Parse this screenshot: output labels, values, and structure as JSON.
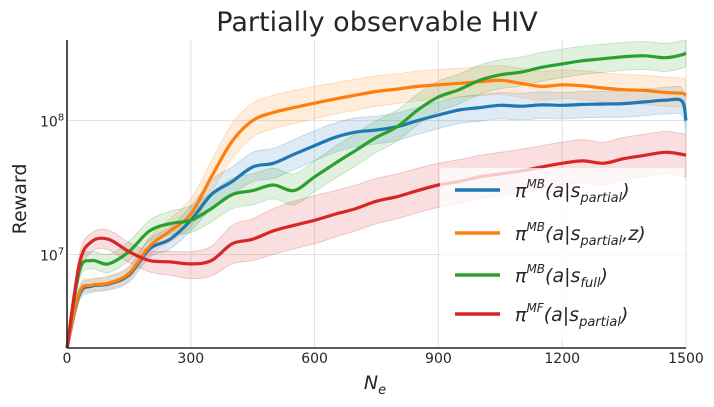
{
  "chart_data": {
    "type": "line",
    "title": "Partially observable HIV",
    "xlabel": "N_e",
    "xlabel_base": "N",
    "xlabel_sub": "e",
    "ylabel": "Reward",
    "yscale": "log",
    "xlim": [
      0,
      1500
    ],
    "ylim": [
      2000000,
      400000000
    ],
    "xticks": [
      0,
      300,
      600,
      900,
      1200,
      1500
    ],
    "xtick_labels": [
      "0",
      "300",
      "600",
      "900",
      "1200",
      "1500"
    ],
    "yticks": [
      {
        "value": 10000000,
        "base": "10",
        "exp": "7"
      },
      {
        "value": 100000000,
        "base": "10",
        "exp": "8"
      }
    ],
    "grid": true,
    "legend_position": "lower-right",
    "x": [
      0,
      30,
      60,
      100,
      150,
      200,
      250,
      300,
      350,
      400,
      450,
      500,
      550,
      600,
      650,
      700,
      750,
      800,
      850,
      900,
      950,
      1000,
      1050,
      1100,
      1150,
      1200,
      1250,
      1300,
      1350,
      1400,
      1450,
      1490,
      1500
    ],
    "series": [
      {
        "name": "π^MB(a|s_partial)",
        "label_super": "MB",
        "label_arg": "a|s",
        "label_sub": "partial",
        "label_extra": "",
        "color": "#1f77b4",
        "values": [
          1700000,
          5000000,
          5800000,
          6000000,
          7000000,
          11000000,
          13000000,
          18000000,
          28000000,
          35000000,
          45000000,
          48000000,
          56000000,
          65000000,
          75000000,
          82000000,
          85000000,
          90000000,
          100000000,
          110000000,
          120000000,
          125000000,
          130000000,
          128000000,
          131000000,
          130000000,
          132000000,
          133000000,
          134000000,
          138000000,
          142000000,
          140000000,
          100000000
        ],
        "lower": [
          1400000,
          4500000,
          5200000,
          5400000,
          6200000,
          9500000,
          11000000,
          15000000,
          22000000,
          28000000,
          35000000,
          37000000,
          43000000,
          50000000,
          58000000,
          64000000,
          67000000,
          71000000,
          79000000,
          87000000,
          95000000,
          99000000,
          103000000,
          101000000,
          104000000,
          103000000,
          105000000,
          106000000,
          106000000,
          109000000,
          112000000,
          110000000,
          80000000
        ],
        "upper": [
          2100000,
          5600000,
          6500000,
          6800000,
          8000000,
          13000000,
          16000000,
          23000000,
          36000000,
          45000000,
          58000000,
          62000000,
          72000000,
          84000000,
          96000000,
          105000000,
          108000000,
          114000000,
          126000000,
          138000000,
          150000000,
          156000000,
          162000000,
          160000000,
          164000000,
          162000000,
          165000000,
          166000000,
          167000000,
          172000000,
          177000000,
          175000000,
          125000000
        ]
      },
      {
        "name": "π^MB(a|s_partial, z)",
        "label_super": "MB",
        "label_arg": "a|s",
        "label_sub": "partial",
        "label_extra": ",z)",
        "color": "#ff7f0e",
        "values": [
          1700000,
          5200000,
          5900000,
          6100000,
          7200000,
          11500000,
          15000000,
          20000000,
          38000000,
          70000000,
          100000000,
          115000000,
          125000000,
          135000000,
          145000000,
          155000000,
          165000000,
          172000000,
          180000000,
          185000000,
          190000000,
          195000000,
          200000000,
          190000000,
          180000000,
          185000000,
          182000000,
          175000000,
          170000000,
          168000000,
          162000000,
          160000000,
          155000000
        ],
        "lower": [
          1400000,
          4700000,
          5300000,
          5500000,
          6400000,
          10000000,
          12500000,
          16000000,
          29000000,
          52000000,
          75000000,
          87000000,
          95000000,
          103000000,
          112000000,
          120000000,
          128000000,
          134000000,
          140000000,
          145000000,
          149000000,
          153000000,
          157000000,
          149000000,
          142000000,
          146000000,
          143000000,
          138000000,
          134000000,
          132000000,
          128000000,
          126000000,
          122000000
        ],
        "upper": [
          2100000,
          5800000,
          6600000,
          6900000,
          8200000,
          13500000,
          18500000,
          26000000,
          50000000,
          95000000,
          135000000,
          155000000,
          168000000,
          180000000,
          192000000,
          204000000,
          216000000,
          224000000,
          234000000,
          240000000,
          246000000,
          252000000,
          258000000,
          246000000,
          234000000,
          240000000,
          236000000,
          227000000,
          221000000,
          218000000,
          211000000,
          208000000,
          200000000
        ]
      },
      {
        "name": "π^MB(a|s_full)",
        "label_super": "MB",
        "label_arg": "a|s",
        "label_sub": "full",
        "label_extra": "",
        "color": "#2ca02c",
        "values": [
          1700000,
          7500000,
          9000000,
          8500000,
          10500000,
          15000000,
          17000000,
          18000000,
          22000000,
          28000000,
          30000000,
          33000000,
          30000000,
          38000000,
          48000000,
          60000000,
          75000000,
          90000000,
          120000000,
          150000000,
          170000000,
          200000000,
          220000000,
          230000000,
          250000000,
          265000000,
          280000000,
          290000000,
          300000000,
          305000000,
          295000000,
          310000000,
          320000000
        ],
        "lower": [
          1400000,
          6500000,
          7800000,
          7300000,
          9000000,
          12500000,
          14000000,
          14500000,
          17500000,
          22000000,
          23500000,
          26000000,
          23500000,
          29500000,
          37000000,
          46000000,
          58000000,
          70000000,
          93000000,
          117000000,
          133000000,
          157000000,
          173000000,
          181000000,
          197000000,
          209000000,
          221000000,
          229000000,
          237000000,
          241000000,
          233000000,
          245000000,
          253000000
        ],
        "upper": [
          2100000,
          8700000,
          10500000,
          10000000,
          12500000,
          18000000,
          21000000,
          23000000,
          29000000,
          37000000,
          40000000,
          44000000,
          40000000,
          50000000,
          64000000,
          80000000,
          100000000,
          120000000,
          158000000,
          197000000,
          223000000,
          260000000,
          285000000,
          298000000,
          323000000,
          342000000,
          360000000,
          372000000,
          384000000,
          390000000,
          378000000,
          395000000,
          400000000
        ]
      },
      {
        "name": "π^MF(a|s_partial)",
        "label_super": "MF",
        "label_arg": "a|s",
        "label_sub": "partial",
        "label_extra": "",
        "color": "#d62728",
        "values": [
          1700000,
          8500000,
          12500000,
          13000000,
          10500000,
          9000000,
          8800000,
          8500000,
          9000000,
          12000000,
          13000000,
          15000000,
          16500000,
          18000000,
          20000000,
          22000000,
          25000000,
          27000000,
          30000000,
          33000000,
          35000000,
          38000000,
          40000000,
          42000000,
          45000000,
          48000000,
          50000000,
          48000000,
          52000000,
          55000000,
          58000000,
          56000000,
          55000000
        ],
        "lower": [
          1400000,
          7000000,
          10500000,
          10800000,
          8700000,
          7400000,
          7000000,
          6600000,
          6900000,
          8500000,
          9000000,
          10000000,
          11000000,
          12000000,
          13500000,
          15000000,
          17000000,
          18500000,
          20500000,
          22500000,
          24000000,
          26000000,
          27500000,
          29000000,
          31000000,
          33000000,
          34500000,
          33000000,
          36000000,
          38000000,
          40000000,
          38500000,
          38000000
        ],
        "upper": [
          2100000,
          10000000,
          14500000,
          15200000,
          12300000,
          10600000,
          10600000,
          10500000,
          11500000,
          16500000,
          18500000,
          22000000,
          25000000,
          27500000,
          30000000,
          33000000,
          37000000,
          40000000,
          44000000,
          48000000,
          51000000,
          55000000,
          58000000,
          61000000,
          65000000,
          69000000,
          72000000,
          69000000,
          75000000,
          79000000,
          83000000,
          80000000,
          79000000
        ]
      }
    ]
  }
}
